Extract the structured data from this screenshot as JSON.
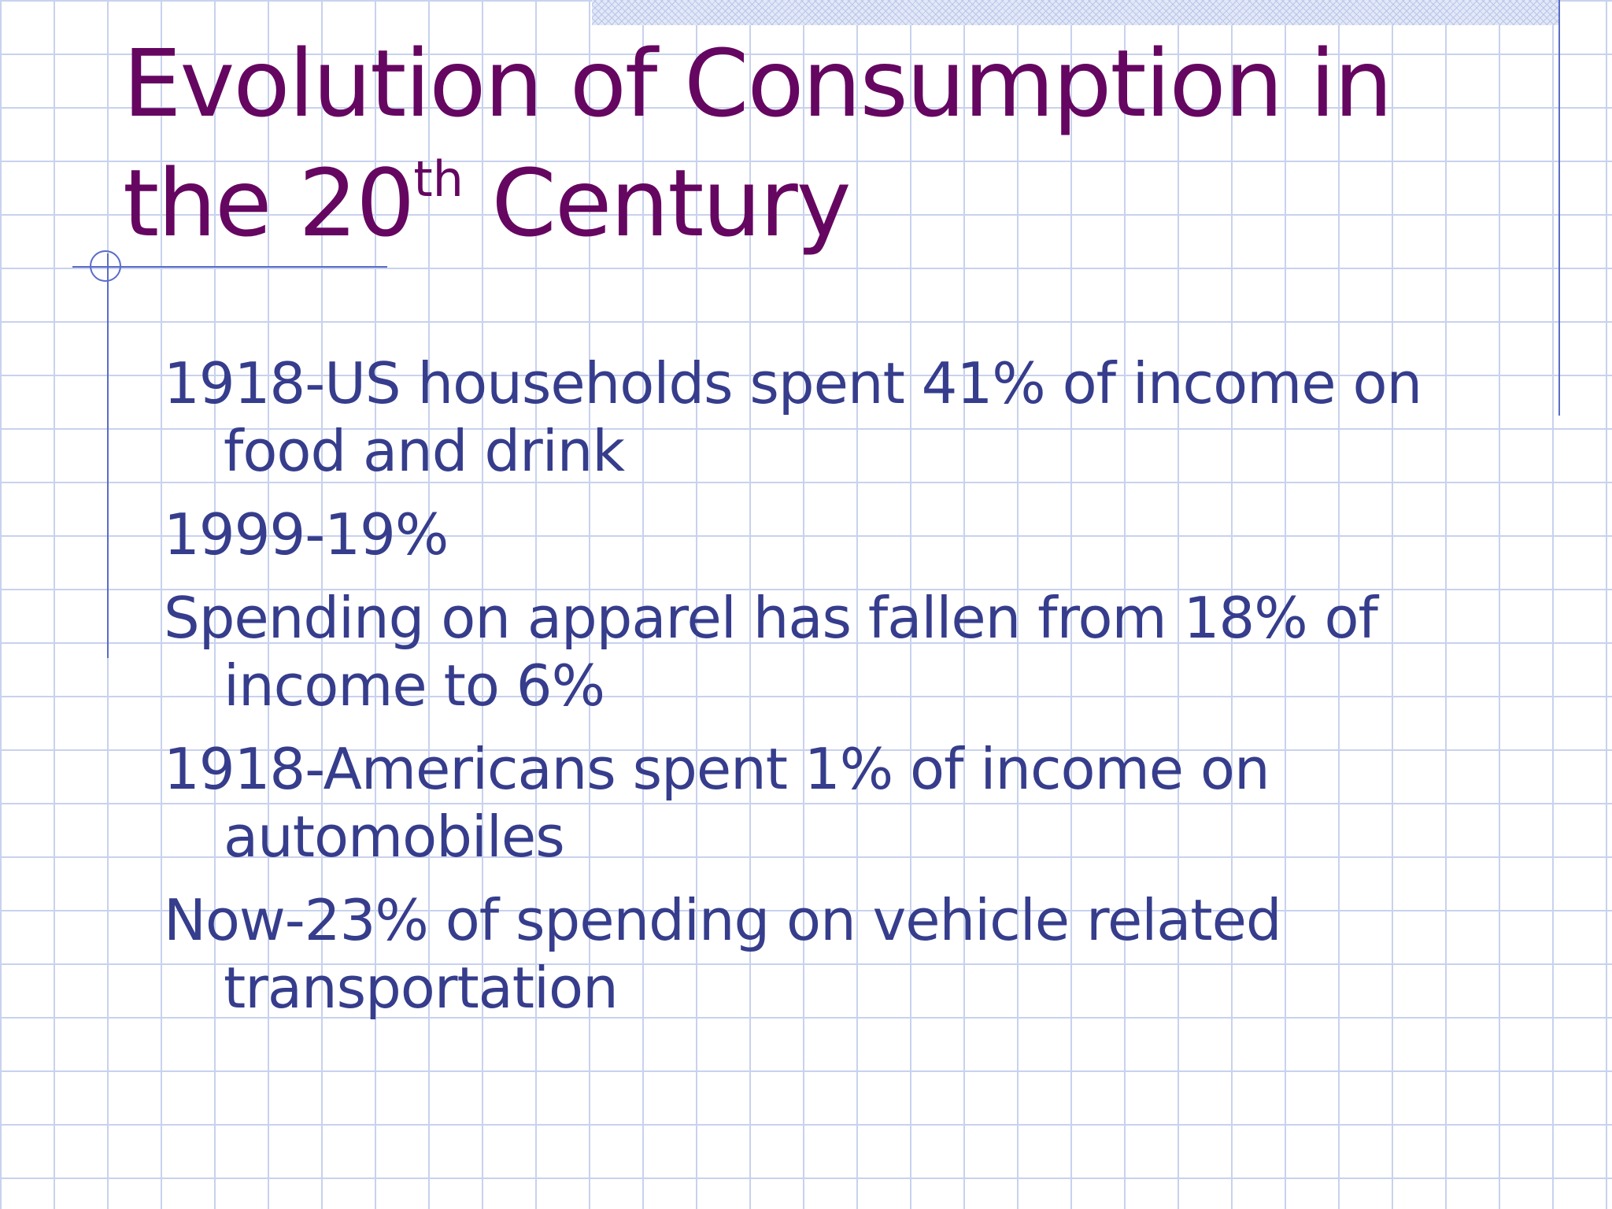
{
  "slide": {
    "title": {
      "line1": "Evolution of Consumption in",
      "line2_prefix": "the 20",
      "line2_superscript": "th",
      "line2_suffix": " Century"
    },
    "bullets": [
      "1918-US households spent 41% of income on food and drink",
      "1999-19%",
      "Spending on apparel has fallen from 18% of income to 6%",
      "1918-Americans spent 1% of income on automobiles",
      "Now-23% of spending on vehicle related transportation"
    ]
  },
  "colors": {
    "title": "#650661",
    "body_text": "#363d8c",
    "accent_lines": "#5a6cc8",
    "grid": "#c8d2ee"
  }
}
